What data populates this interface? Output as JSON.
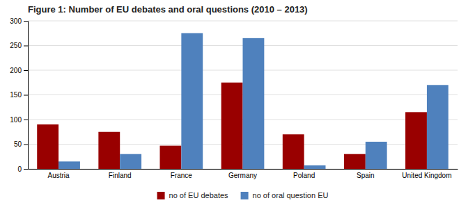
{
  "chart_data": {
    "type": "bar",
    "title": "Figure 1: Number of EU debates and oral questions (2010 – 2013)",
    "categories": [
      "Austria",
      "Finland",
      "France",
      "Germany",
      "Poland",
      "Spain",
      "United Kingdom"
    ],
    "series": [
      {
        "name": "no of EU debates",
        "color": "#990000",
        "values": [
          90,
          75,
          47,
          175,
          70,
          30,
          115
        ]
      },
      {
        "name": "no of oral question EU",
        "color": "#4f81bd",
        "values": [
          15,
          30,
          275,
          265,
          7,
          55,
          170
        ]
      }
    ],
    "ylim": [
      0,
      300
    ],
    "yticks": [
      0,
      50,
      100,
      150,
      200,
      250,
      300
    ],
    "grid": true,
    "legend": "bottom"
  }
}
